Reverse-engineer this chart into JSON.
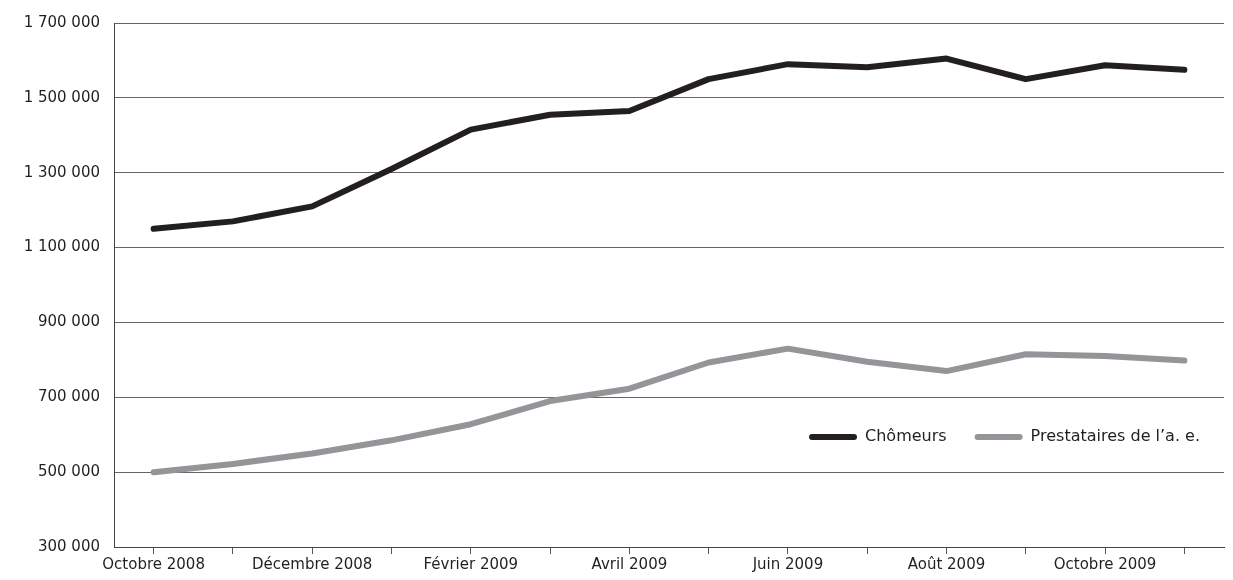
{
  "chart_data": {
    "type": "line",
    "categories": [
      "Octobre 2008",
      null,
      "Décembre 2008",
      null,
      "Février 2009",
      null,
      "Avril 2009",
      null,
      "Juin 2009",
      null,
      "Août 2009",
      null,
      "Octobre 2009",
      null
    ],
    "series": [
      {
        "name": "Chômeurs",
        "color": "#231f20",
        "values": [
          1150000,
          1170000,
          1210000,
          1310000,
          1415000,
          1455000,
          1465000,
          1550000,
          1590000,
          1582000,
          1605000,
          1550000,
          1587000,
          1575000
        ]
      },
      {
        "name": "Prestataires de l’a. e.",
        "color": "#939598",
        "values": [
          500000,
          522000,
          550000,
          585000,
          628000,
          690000,
          723000,
          793000,
          830000,
          795000,
          770000,
          815000,
          810000,
          798000
        ]
      }
    ],
    "ylim": [
      300000,
      1700000
    ],
    "yticks": [
      {
        "value": 300000,
        "label": "300 000"
      },
      {
        "value": 500000,
        "label": "500 000"
      },
      {
        "value": 700000,
        "label": "700 000"
      },
      {
        "value": 900000,
        "label": "900 000"
      },
      {
        "value": 1100000,
        "label": "1 100 000"
      },
      {
        "value": 1300000,
        "label": "1 300 000"
      },
      {
        "value": 1500000,
        "label": "1 500 000"
      },
      {
        "value": 1700000,
        "label": "1 700 000"
      }
    ],
    "grid": "y",
    "legend": "bottom right",
    "marker": "none"
  }
}
